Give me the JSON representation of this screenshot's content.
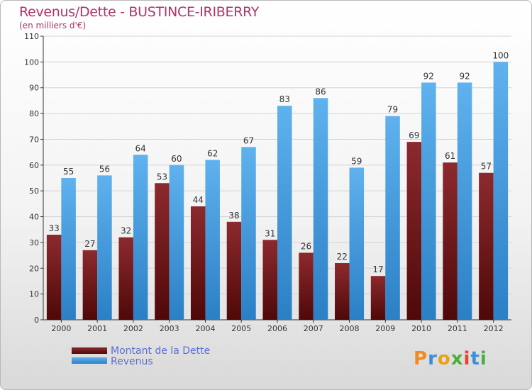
{
  "title": "Revenus/Dette - BUSTINCE-IRIBERRY",
  "subtitle": "(en milliers d'€)",
  "legend": [
    {
      "label": "Montant de la Dette",
      "color": "#7a1a1e"
    },
    {
      "label": "Revenus",
      "color": "#4a9fe0"
    }
  ],
  "logo": [
    "P",
    "r",
    "o",
    "x",
    "i",
    "t",
    "i"
  ],
  "colors": {
    "debt_top": "#8c2a2e",
    "debt_bottom": "#4f0808",
    "revenue_top": "#5fb2ee",
    "revenue_bottom": "#2b7fc5",
    "logo": [
      "#f28a1e",
      "#3c8fd6",
      "#e8a21a",
      "#4cae3b",
      "#e8432e",
      "#3c8fd6",
      "#4cae3b"
    ]
  },
  "chart_data": {
    "type": "bar",
    "categories": [
      "2000",
      "2001",
      "2002",
      "2003",
      "2004",
      "2005",
      "2006",
      "2007",
      "2008",
      "2009",
      "2010",
      "2011",
      "2012"
    ],
    "series": [
      {
        "name": "Montant de la Dette",
        "values": [
          33,
          27,
          32,
          53,
          44,
          38,
          31,
          26,
          22,
          17,
          69,
          61,
          57
        ]
      },
      {
        "name": "Revenus",
        "values": [
          55,
          56,
          64,
          60,
          62,
          67,
          83,
          86,
          59,
          79,
          92,
          92,
          100
        ]
      }
    ],
    "ylim": [
      0,
      110
    ],
    "yticks": [
      0,
      10,
      20,
      30,
      40,
      50,
      60,
      70,
      80,
      90,
      100,
      110
    ],
    "grid": true,
    "legend_position": "bottom-left"
  }
}
